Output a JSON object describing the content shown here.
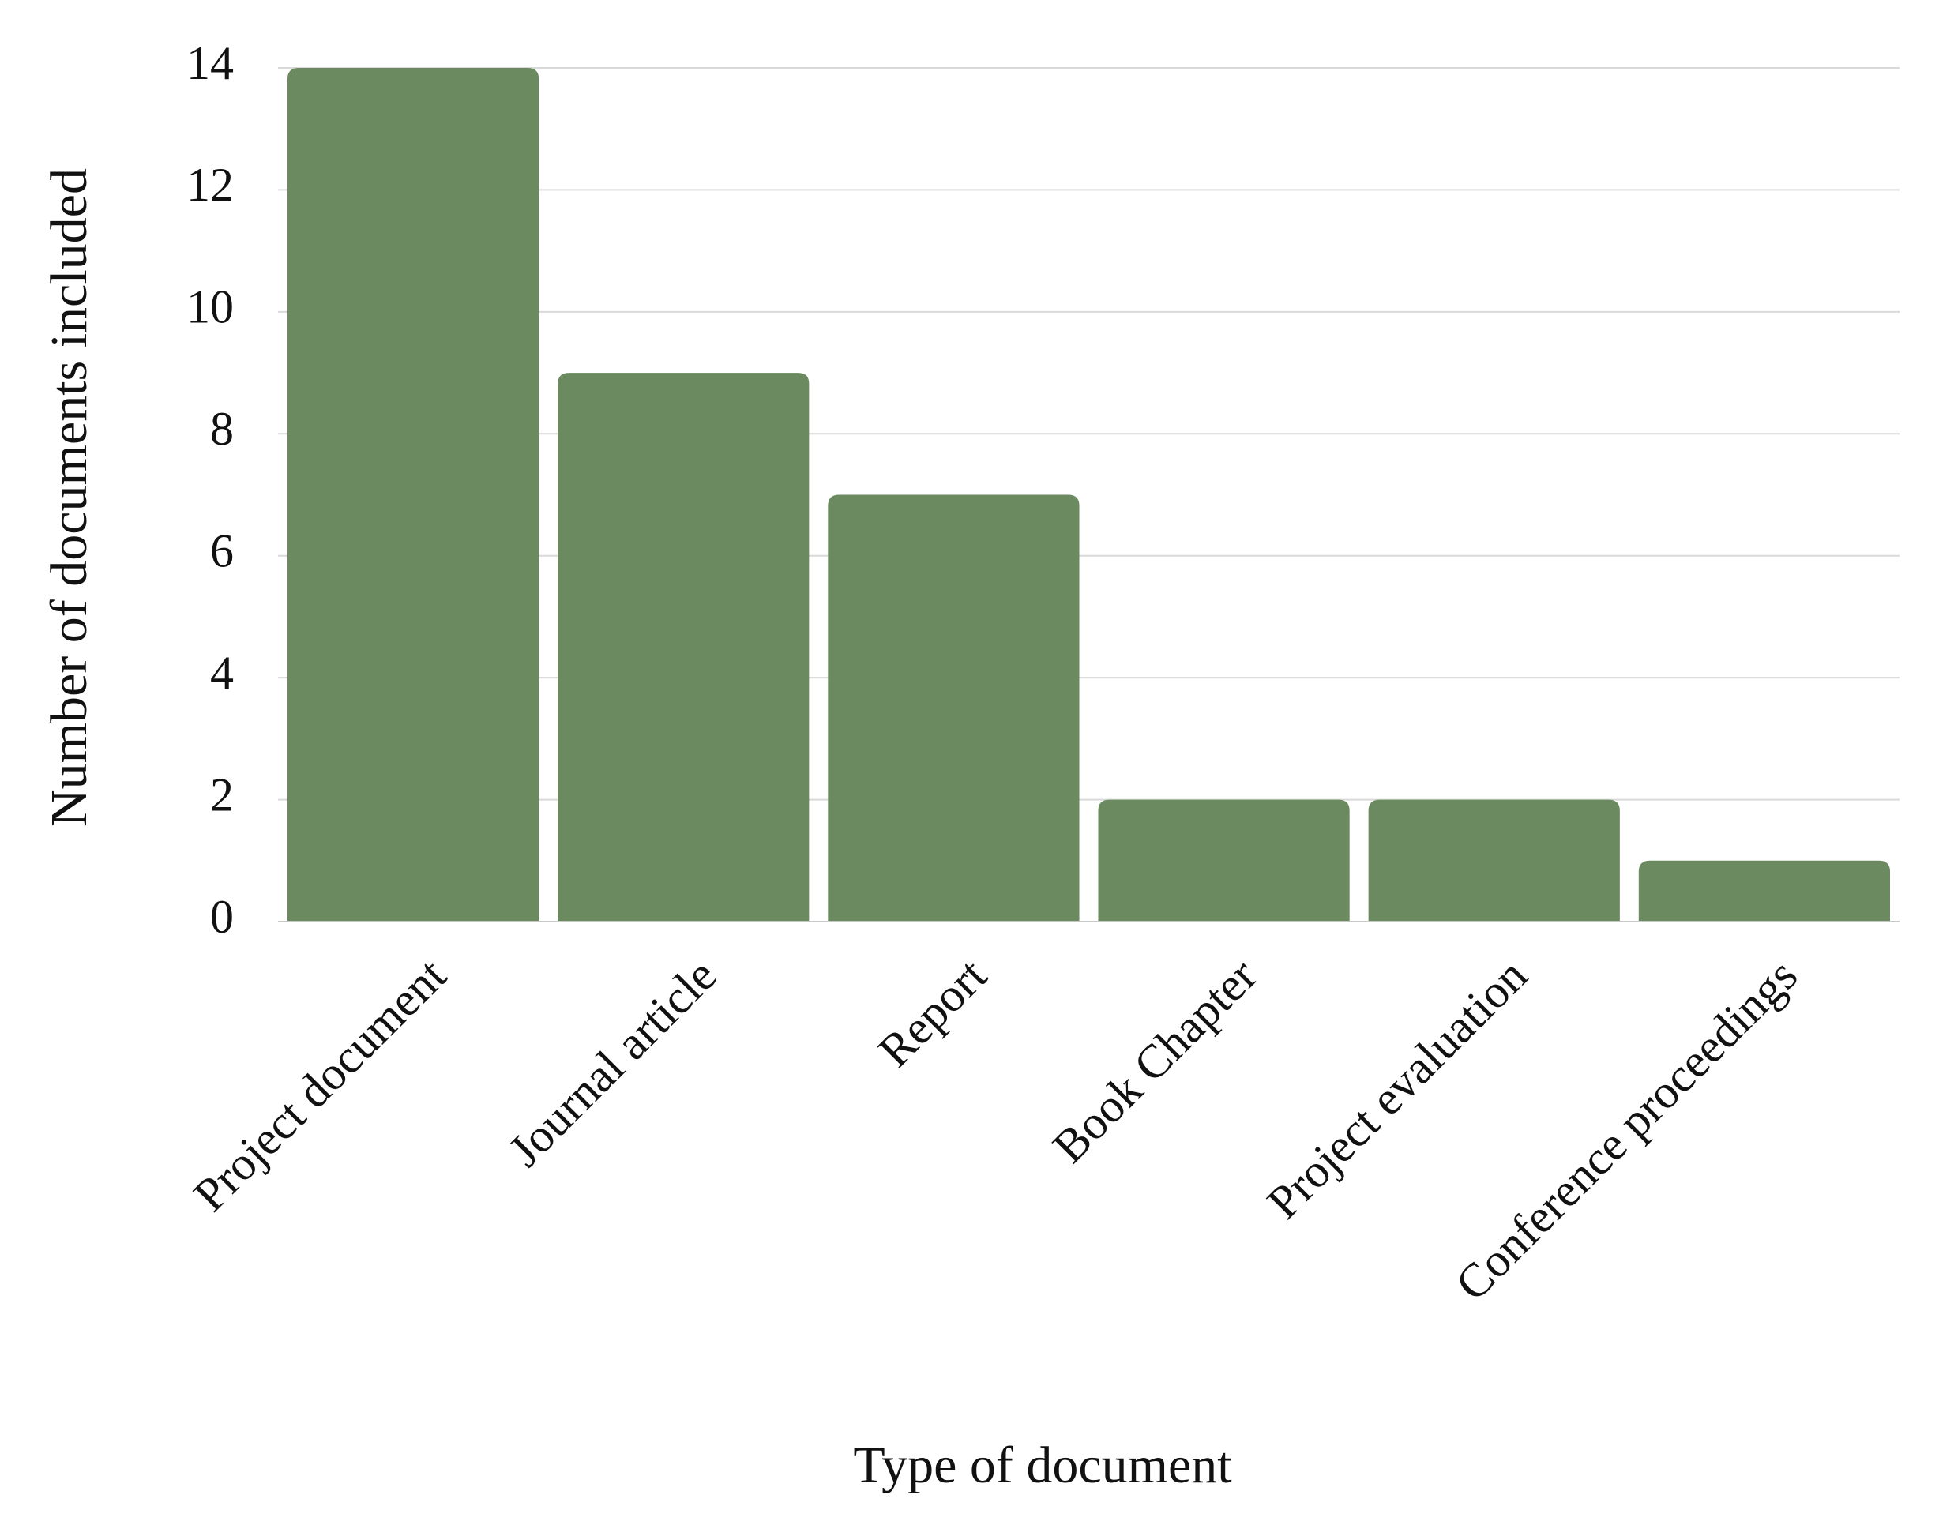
{
  "chart_data": {
    "type": "bar",
    "categories": [
      "Project document",
      "Journal article",
      "Report",
      "Book Chapter",
      "Project evaluation",
      "Conference proceedings"
    ],
    "values": [
      14,
      9,
      7,
      2,
      2,
      1
    ],
    "color": "#6c8a60",
    "ylim": [
      0,
      14
    ],
    "yticks": [
      0,
      2,
      4,
      6,
      8,
      10,
      12,
      14
    ],
    "grid": true,
    "x_label": "Type of document",
    "y_label": "Number of documents included"
  }
}
